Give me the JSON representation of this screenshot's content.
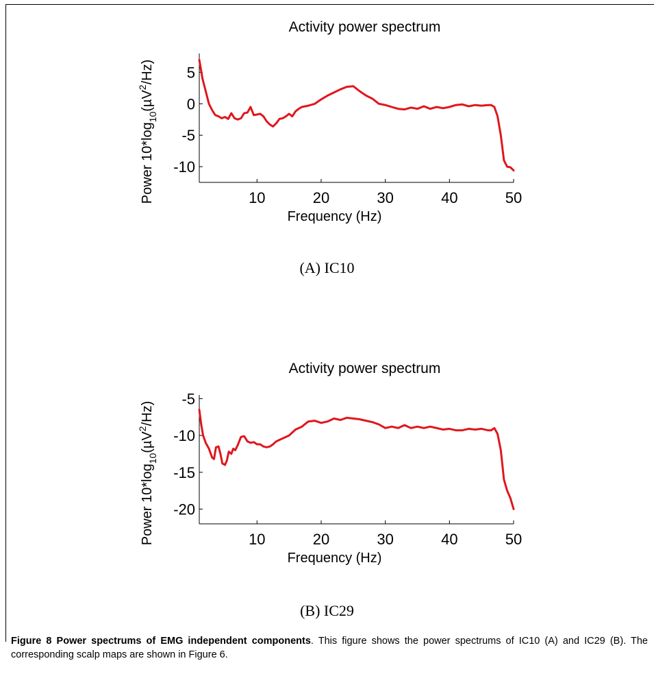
{
  "figure": {
    "caption_title": "Figure 8 Power spectrums of EMG independent components",
    "caption_text": ". This figure shows the power spectrums of IC10 (A) and IC29 (B). The corresponding scalp maps are shown in Figure 6."
  },
  "panels": [
    {
      "label": "(A)  IC10"
    },
    {
      "label": "(B)  IC29"
    }
  ],
  "chart_data": [
    {
      "type": "line",
      "title": "Activity power spectrum",
      "xlabel": "Frequency (Hz)",
      "ylabel": "Power 10*log10(µV²/Hz)",
      "xlim": [
        1,
        50
      ],
      "ylim": [
        -12.5,
        8
      ],
      "xticks": [
        10,
        20,
        30,
        40,
        50
      ],
      "yticks": [
        5,
        0,
        -5,
        -10
      ],
      "series": [
        {
          "color": "#e0161d",
          "x": [
            1,
            1.5,
            2,
            2.5,
            3,
            3.5,
            4,
            4.5,
            5,
            5.5,
            6,
            6.5,
            7,
            7.5,
            8,
            8.5,
            9,
            9.5,
            10,
            10.5,
            11,
            11.5,
            12,
            12.5,
            13,
            13.5,
            14,
            14.5,
            15,
            15.5,
            16,
            16.5,
            17,
            18,
            19,
            20,
            21,
            22,
            23,
            24,
            25,
            26,
            27,
            28,
            29,
            30,
            31,
            32,
            33,
            34,
            35,
            36,
            37,
            38,
            39,
            40,
            41,
            42,
            43,
            44,
            45,
            46,
            46.5,
            47,
            47.5,
            48,
            48.5,
            49,
            49.5,
            50
          ],
          "values": [
            7,
            4,
            2,
            0,
            -1,
            -1.8,
            -2,
            -2.3,
            -2.1,
            -2.4,
            -1.5,
            -2.3,
            -2.5,
            -2.3,
            -1.5,
            -1.4,
            -0.5,
            -1.8,
            -1.7,
            -1.6,
            -2,
            -2.8,
            -3.3,
            -3.6,
            -3.1,
            -2.4,
            -2.3,
            -2,
            -1.6,
            -2,
            -1.2,
            -0.8,
            -0.5,
            -0.3,
            0,
            0.7,
            1.3,
            1.8,
            2.3,
            2.7,
            2.8,
            2,
            1.3,
            0.8,
            0,
            -0.2,
            -0.5,
            -0.8,
            -0.9,
            -0.6,
            -0.8,
            -0.4,
            -0.8,
            -0.5,
            -0.7,
            -0.5,
            -0.2,
            -0.1,
            -0.4,
            -0.2,
            -0.3,
            -0.2,
            -0.2,
            -0.5,
            -2,
            -5,
            -9,
            -10,
            -10.1,
            -10.6
          ]
        }
      ]
    },
    {
      "type": "line",
      "title": "Activity power spectrum",
      "xlabel": "Frequency (Hz)",
      "ylabel": "Power 10*log10(µV²/Hz)",
      "xlim": [
        1,
        50
      ],
      "ylim": [
        -22,
        -4.5
      ],
      "xticks": [
        10,
        20,
        30,
        40,
        50
      ],
      "yticks": [
        -5,
        -10,
        -15,
        -20
      ],
      "series": [
        {
          "color": "#e0161d",
          "x": [
            1,
            1.3,
            1.6,
            2,
            2.5,
            3,
            3.3,
            3.6,
            4,
            4.3,
            4.6,
            5,
            5.3,
            5.6,
            6,
            6.3,
            6.6,
            7,
            7.5,
            8,
            8.5,
            9,
            9.5,
            10,
            10.5,
            11,
            11.5,
            12,
            12.5,
            13,
            14,
            15,
            16,
            17,
            18,
            19,
            20,
            21,
            22,
            23,
            24,
            25,
            26,
            27,
            28,
            29,
            30,
            31,
            32,
            33,
            34,
            35,
            36,
            37,
            38,
            39,
            40,
            41,
            42,
            43,
            44,
            45,
            46,
            46.5,
            47,
            47.5,
            48,
            48.5,
            49,
            49.5,
            50
          ],
          "values": [
            -6.5,
            -8.5,
            -10,
            -11,
            -11.8,
            -13,
            -13.2,
            -11.6,
            -11.5,
            -12.5,
            -13.8,
            -14,
            -13.4,
            -12.2,
            -12.5,
            -11.8,
            -12,
            -11.3,
            -10.2,
            -10.1,
            -10.8,
            -11,
            -10.9,
            -11.2,
            -11.2,
            -11.5,
            -11.6,
            -11.5,
            -11.2,
            -10.8,
            -10.4,
            -10,
            -9.2,
            -8.8,
            -8.1,
            -8,
            -8.3,
            -8.1,
            -7.7,
            -7.9,
            -7.6,
            -7.7,
            -7.8,
            -8,
            -8.2,
            -8.5,
            -9,
            -8.8,
            -9,
            -8.6,
            -9,
            -8.8,
            -9,
            -8.8,
            -9,
            -9.2,
            -9.1,
            -9.3,
            -9.3,
            -9.1,
            -9.2,
            -9.1,
            -9.3,
            -9.3,
            -9,
            -9.8,
            -12,
            -16,
            -17.5,
            -18.5,
            -20
          ]
        }
      ]
    }
  ]
}
